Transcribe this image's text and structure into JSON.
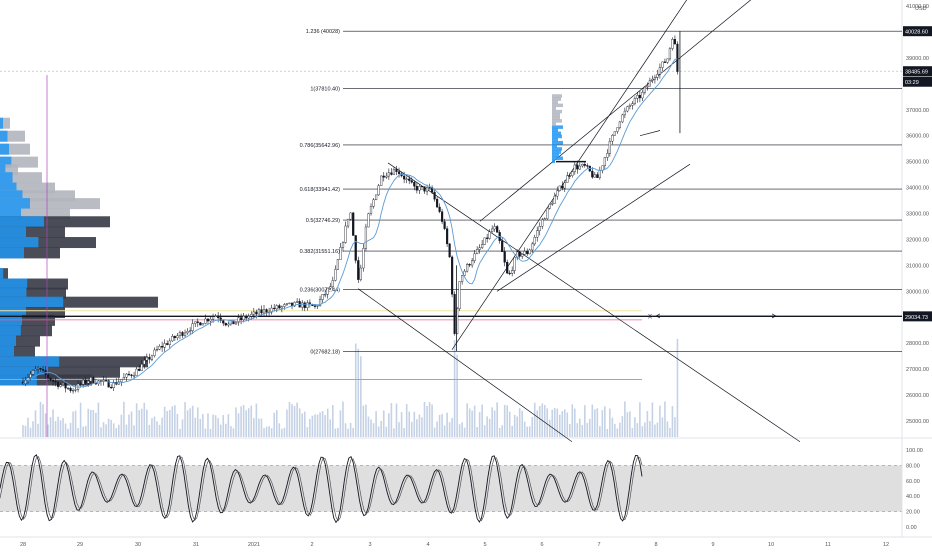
{
  "currency": "USD",
  "price_axis": {
    "ticks": [
      "41000.00",
      "40000.00",
      "39000.00",
      "38000.00",
      "37000.00",
      "36000.00",
      "35000.00",
      "34000.00",
      "33000.00",
      "32000.00",
      "31000.00",
      "30000.00",
      "29000.00",
      "28000.00",
      "27000.00",
      "26000.00",
      "25000.00"
    ],
    "ylim": [
      24600,
      42000
    ]
  },
  "time_axis": {
    "ticks": [
      "28",
      "29",
      "30",
      "31",
      "2021",
      "2",
      "3",
      "4",
      "5",
      "6",
      "7",
      "8",
      "9",
      "10",
      "11",
      "12"
    ]
  },
  "oscillator_axis": {
    "ticks": [
      "100.00",
      "80.00",
      "60.00",
      "40.00",
      "20.00",
      "0.00"
    ],
    "ylim": [
      -5,
      105
    ],
    "band": [
      20,
      80
    ]
  },
  "price_labels": [
    {
      "text": "40028.60",
      "value": 40028.6,
      "bg": "#131722",
      "fg": "#ffffff"
    },
    {
      "text": "38485.69",
      "value": 38485.69,
      "bg": "#131722",
      "fg": "#ffffff"
    },
    {
      "text": "03:29",
      "value": 38080,
      "bg": "#131722",
      "fg": "#ffffff"
    },
    {
      "text": "29034.73",
      "value": 29034.73,
      "bg": "#131722",
      "fg": "#ffffff"
    }
  ],
  "fib_levels": [
    {
      "label": "1.236 (40028)",
      "value": 40028
    },
    {
      "label": "1(37810.40)",
      "value": 37810.4
    },
    {
      "label": "0.786(35642.96)",
      "value": 35642.96
    },
    {
      "label": "0.618(33941.42)",
      "value": 33941.42
    },
    {
      "label": "0.5(32746.29)",
      "value": 32746.29
    },
    {
      "label": "0.382(31551.16)",
      "value": 31551.16
    },
    {
      "label": "0.236(30072.44)",
      "value": 30072.44
    },
    {
      "label": "0(27682.18)",
      "value": 27682.18
    }
  ],
  "annotation": {
    "text": "X"
  },
  "colors": {
    "up": "#131722",
    "down": "#131722",
    "ma": "#5b9bd5",
    "volume": "#b7c7de",
    "profile_blue": "#2196f3",
    "profile_dark": "#363a45",
    "profile_grey": "#b2b5be",
    "band_fill": "#d9d9d9",
    "horizontal_line": "#131722",
    "orange_line": "#ff9800",
    "pink_line": "#f06292",
    "vertical_line": "#ab47bc"
  },
  "chart_data": {
    "type": "candlestick",
    "title": "",
    "x": [
      "28",
      "29",
      "30",
      "31",
      "2021",
      "2",
      "3",
      "4",
      "5",
      "6",
      "7"
    ],
    "close_approx": [
      26400,
      26800,
      28300,
      29000,
      29300,
      30500,
      34000,
      31500,
      31900,
      34500,
      38485.69
    ],
    "high_approx": [
      27300,
      27400,
      28900,
      29600,
      29600,
      33300,
      34900,
      34400,
      33000,
      36600,
      40028.6
    ],
    "low_approx": [
      25900,
      26000,
      26700,
      28000,
      28600,
      29700,
      30200,
      27700,
      30000,
      33000,
      36100
    ],
    "ylim": [
      24600,
      42000
    ],
    "oscillator": {
      "name": "",
      "band": [
        20,
        80
      ]
    }
  }
}
